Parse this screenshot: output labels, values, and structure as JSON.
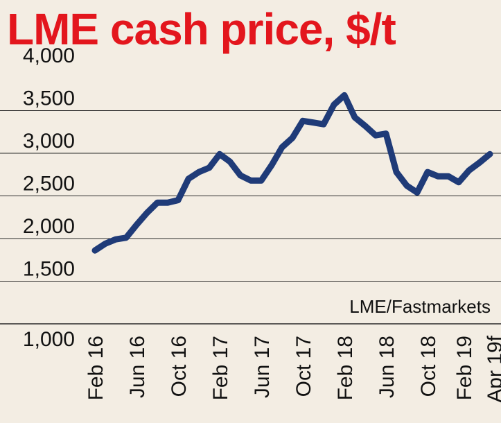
{
  "colors": {
    "background": "#f3ede3",
    "title": "#e3161d",
    "line": "#1f3b78",
    "grid": "#2a2a2a",
    "text": "#111111"
  },
  "chart_data": {
    "type": "line",
    "title": "LME cash price, $/t",
    "source": "LME/Fastmarkets",
    "xlabel": "",
    "ylabel": "",
    "ylim": [
      1000,
      4000
    ],
    "yticks": [
      1000,
      1500,
      2000,
      2500,
      3000,
      3500,
      4000
    ],
    "ytick_labels": [
      "1,000",
      "1,500",
      "2,000",
      "2,500",
      "3,000",
      "3,500",
      "4,000"
    ],
    "xtick_labels": [
      "Feb 16",
      "Jun 16",
      "Oct 16",
      "Feb 17",
      "Jun 17",
      "Oct 17",
      "Feb 18",
      "Jun 18",
      "Oct 18",
      "Feb 19",
      "Apr 19f"
    ],
    "grid": "horizontal",
    "series": [
      {
        "name": "",
        "months": [
          "Feb 16",
          "Mar 16",
          "Apr 16",
          "May 16",
          "Jun 16",
          "Jul 16",
          "Aug 16",
          "Sep 16",
          "Oct 16",
          "Nov 16",
          "Dec 16",
          "Jan 17",
          "Feb 17",
          "Mar 17",
          "Apr 17",
          "May 17",
          "Jun 17",
          "Jul 17",
          "Aug 17",
          "Sep 17",
          "Oct 17",
          "Nov 17",
          "Dec 17",
          "Jan 18",
          "Feb 18",
          "Mar 18",
          "Apr 18",
          "May 18",
          "Jun 18",
          "Jul 18",
          "Aug 18",
          "Sep 18",
          "Oct 18",
          "Nov 18",
          "Dec 18",
          "Jan 19",
          "Feb 19",
          "Mar 19",
          "Apr 19f"
        ],
        "values": [
          1860,
          1940,
          1990,
          2010,
          2160,
          2300,
          2420,
          2420,
          2450,
          2700,
          2780,
          2830,
          2990,
          2900,
          2740,
          2680,
          2680,
          2860,
          3070,
          3180,
          3380,
          3360,
          3340,
          3570,
          3680,
          3420,
          3320,
          3210,
          3230,
          2780,
          2620,
          2540,
          2780,
          2730,
          2730,
          2660,
          2800,
          2890,
          2990
        ]
      }
    ]
  }
}
